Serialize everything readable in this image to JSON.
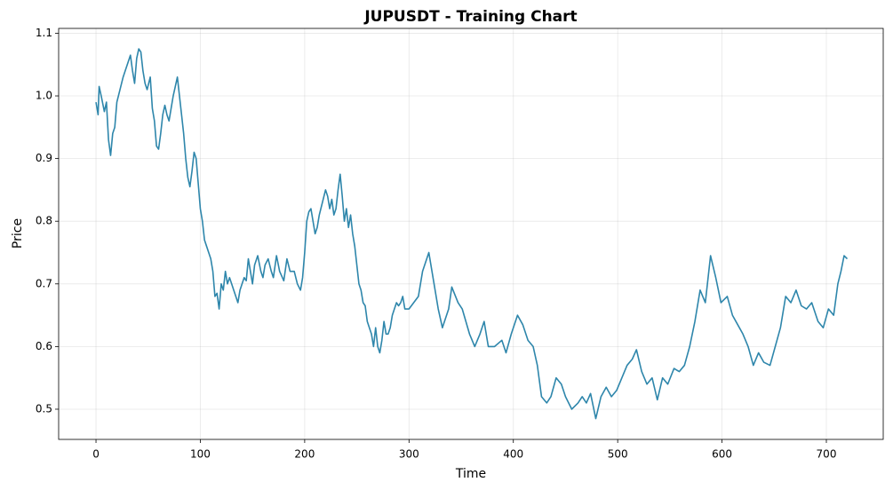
{
  "chart_data": {
    "type": "line",
    "title": "JUPUSDT - Training Chart",
    "x_label": "Time",
    "y_label": "Price",
    "grid": true,
    "xlim": [
      -35.8,
      754.5
    ],
    "ylim": [
      0.4518,
      1.1077
    ],
    "xticks": [
      0,
      100,
      200,
      300,
      400,
      500,
      600,
      700
    ],
    "yticks": [
      0.5,
      0.6,
      0.7,
      0.8,
      0.9,
      {
        "value": 1,
        "label": "1.0"
      },
      1.1
    ],
    "x": [
      0,
      2,
      3,
      5,
      8,
      10,
      12,
      14,
      16,
      18,
      20,
      23,
      26,
      28,
      30,
      33,
      35,
      37,
      39,
      41,
      43,
      45,
      47,
      49,
      52,
      54,
      56,
      58,
      60,
      62,
      64,
      66,
      68,
      70,
      72,
      74,
      76,
      78,
      80,
      82,
      84,
      86,
      88,
      90,
      92,
      94,
      96,
      98,
      100,
      102,
      104,
      106,
      108,
      110,
      112,
      114,
      116,
      118,
      120,
      122,
      124,
      126,
      128,
      130,
      132,
      134,
      136,
      138,
      140,
      142,
      144,
      146,
      148,
      150,
      152,
      155,
      158,
      160,
      162,
      165,
      168,
      170,
      173,
      176,
      180,
      183,
      186,
      190,
      193,
      196,
      198,
      200,
      202,
      204,
      206,
      208,
      210,
      212,
      214,
      217,
      220,
      222,
      224,
      226,
      228,
      230,
      232,
      234,
      236,
      238,
      240,
      242,
      244,
      246,
      248,
      250,
      252,
      254,
      256,
      258,
      260,
      262,
      264,
      266,
      268,
      270,
      272,
      274,
      276,
      278,
      280,
      282,
      284,
      286,
      288,
      290,
      292,
      294,
      296,
      300,
      309,
      313,
      319,
      324,
      328,
      332,
      338,
      341,
      347,
      351,
      358,
      363,
      368,
      372,
      376,
      382,
      389,
      393,
      398,
      404,
      409,
      414,
      419,
      423,
      427,
      432,
      436,
      441,
      446,
      450,
      456,
      462,
      466,
      470,
      474,
      479,
      484,
      489,
      494,
      499,
      504,
      509,
      514,
      518,
      523,
      528,
      533,
      538,
      543,
      548,
      554,
      559,
      564,
      569,
      574,
      579,
      584,
      589,
      594,
      599,
      605,
      610,
      615,
      620,
      625,
      630,
      635,
      640,
      646,
      651,
      656,
      661,
      666,
      671,
      676,
      681,
      686,
      692,
      697,
      702,
      707,
      711,
      714,
      717,
      720
    ],
    "series": [
      {
        "name": "Price",
        "color": "#2e86ab",
        "values": [
          0.99,
          0.97,
          1.015,
          1.0,
          0.975,
          0.99,
          0.93,
          0.905,
          0.94,
          0.95,
          0.99,
          1.01,
          1.03,
          1.04,
          1.05,
          1.065,
          1.04,
          1.02,
          1.06,
          1.075,
          1.07,
          1.04,
          1.02,
          1.01,
          1.03,
          0.98,
          0.96,
          0.92,
          0.915,
          0.94,
          0.97,
          0.985,
          0.97,
          0.96,
          0.98,
          1.0,
          1.015,
          1.03,
          1.0,
          0.97,
          0.94,
          0.9,
          0.87,
          0.855,
          0.88,
          0.91,
          0.9,
          0.86,
          0.82,
          0.8,
          0.77,
          0.76,
          0.75,
          0.74,
          0.72,
          0.68,
          0.685,
          0.66,
          0.7,
          0.69,
          0.72,
          0.7,
          0.71,
          0.7,
          0.69,
          0.68,
          0.67,
          0.69,
          0.7,
          0.71,
          0.705,
          0.74,
          0.72,
          0.7,
          0.73,
          0.745,
          0.72,
          0.71,
          0.73,
          0.74,
          0.72,
          0.71,
          0.745,
          0.72,
          0.705,
          0.74,
          0.72,
          0.72,
          0.7,
          0.69,
          0.71,
          0.75,
          0.8,
          0.815,
          0.82,
          0.8,
          0.78,
          0.79,
          0.81,
          0.83,
          0.85,
          0.84,
          0.82,
          0.835,
          0.81,
          0.82,
          0.85,
          0.875,
          0.84,
          0.8,
          0.82,
          0.79,
          0.81,
          0.78,
          0.76,
          0.73,
          0.7,
          0.69,
          0.67,
          0.665,
          0.64,
          0.63,
          0.62,
          0.6,
          0.63,
          0.6,
          0.59,
          0.61,
          0.64,
          0.62,
          0.62,
          0.63,
          0.65,
          0.66,
          0.67,
          0.665,
          0.67,
          0.68,
          0.66,
          0.66,
          0.68,
          0.72,
          0.75,
          0.7,
          0.66,
          0.63,
          0.66,
          0.695,
          0.67,
          0.66,
          0.62,
          0.6,
          0.62,
          0.64,
          0.6,
          0.6,
          0.61,
          0.59,
          0.62,
          0.65,
          0.635,
          0.61,
          0.6,
          0.57,
          0.52,
          0.51,
          0.52,
          0.55,
          0.54,
          0.52,
          0.5,
          0.51,
          0.52,
          0.51,
          0.525,
          0.485,
          0.52,
          0.535,
          0.52,
          0.53,
          0.55,
          0.57,
          0.58,
          0.595,
          0.56,
          0.54,
          0.55,
          0.515,
          0.55,
          0.54,
          0.565,
          0.56,
          0.57,
          0.6,
          0.64,
          0.69,
          0.67,
          0.745,
          0.71,
          0.67,
          0.68,
          0.65,
          0.635,
          0.62,
          0.6,
          0.57,
          0.59,
          0.575,
          0.57,
          0.6,
          0.63,
          0.68,
          0.67,
          0.69,
          0.665,
          0.66,
          0.67,
          0.64,
          0.63,
          0.66,
          0.65,
          0.7,
          0.72,
          0.745,
          0.74
        ]
      }
    ]
  }
}
